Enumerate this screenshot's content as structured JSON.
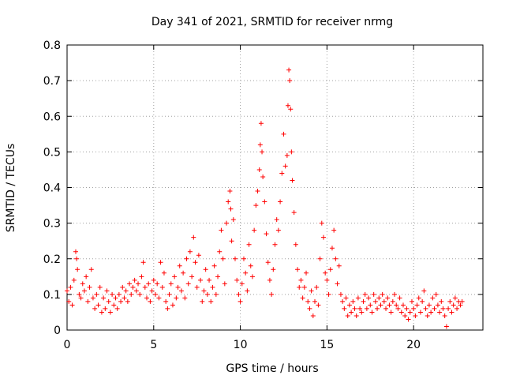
{
  "chart_data": {
    "type": "scatter",
    "title": "Day 341 of 2021, SRMTID for receiver nrmg",
    "xlabel": "GPS time / hours",
    "ylabel": "SRMTID / TECUs",
    "xlim": [
      0,
      24
    ],
    "ylim": [
      0,
      0.8
    ],
    "xticks": [
      0,
      5,
      10,
      15,
      20
    ],
    "yticks": [
      0,
      0.1,
      0.2,
      0.3,
      0.4,
      0.5,
      0.6,
      0.7,
      0.8
    ],
    "xtick_labels": [
      "0",
      "5",
      "10",
      "15",
      "20"
    ],
    "ytick_labels": [
      "0",
      "0.1",
      "0.2",
      "0.3",
      "0.4",
      "0.5",
      "0.6",
      "0.7",
      "0.8"
    ],
    "grid": true,
    "marker": "+",
    "color": "#ff0000",
    "series": [
      {
        "name": "SRMTID",
        "points": [
          [
            0.0,
            0.11
          ],
          [
            0.1,
            0.08
          ],
          [
            0.2,
            0.12
          ],
          [
            0.3,
            0.07
          ],
          [
            0.4,
            0.14
          ],
          [
            0.5,
            0.22
          ],
          [
            0.55,
            0.2
          ],
          [
            0.6,
            0.17
          ],
          [
            0.7,
            0.1
          ],
          [
            0.8,
            0.09
          ],
          [
            0.9,
            0.13
          ],
          [
            1.0,
            0.11
          ],
          [
            1.1,
            0.15
          ],
          [
            1.2,
            0.08
          ],
          [
            1.3,
            0.12
          ],
          [
            1.4,
            0.17
          ],
          [
            1.5,
            0.09
          ],
          [
            1.6,
            0.06
          ],
          [
            1.7,
            0.1
          ],
          [
            1.8,
            0.07
          ],
          [
            1.9,
            0.12
          ],
          [
            2.0,
            0.05
          ],
          [
            2.1,
            0.09
          ],
          [
            2.2,
            0.06
          ],
          [
            2.3,
            0.11
          ],
          [
            2.4,
            0.08
          ],
          [
            2.5,
            0.05
          ],
          [
            2.6,
            0.1
          ],
          [
            2.7,
            0.07
          ],
          [
            2.8,
            0.09
          ],
          [
            2.9,
            0.06
          ],
          [
            3.0,
            0.1
          ],
          [
            3.1,
            0.08
          ],
          [
            3.2,
            0.12
          ],
          [
            3.3,
            0.09
          ],
          [
            3.4,
            0.11
          ],
          [
            3.5,
            0.08
          ],
          [
            3.6,
            0.13
          ],
          [
            3.7,
            0.1
          ],
          [
            3.8,
            0.12
          ],
          [
            3.9,
            0.14
          ],
          [
            4.0,
            0.11
          ],
          [
            4.1,
            0.13
          ],
          [
            4.2,
            0.1
          ],
          [
            4.3,
            0.15
          ],
          [
            4.4,
            0.19
          ],
          [
            4.5,
            0.12
          ],
          [
            4.6,
            0.09
          ],
          [
            4.7,
            0.13
          ],
          [
            4.8,
            0.08
          ],
          [
            4.9,
            0.11
          ],
          [
            5.0,
            0.14
          ],
          [
            5.1,
            0.1
          ],
          [
            5.2,
            0.13
          ],
          [
            5.3,
            0.09
          ],
          [
            5.4,
            0.19
          ],
          [
            5.5,
            0.12
          ],
          [
            5.6,
            0.16
          ],
          [
            5.7,
            0.08
          ],
          [
            5.8,
            0.06
          ],
          [
            5.9,
            0.1
          ],
          [
            6.0,
            0.13
          ],
          [
            6.1,
            0.07
          ],
          [
            6.2,
            0.15
          ],
          [
            6.3,
            0.09
          ],
          [
            6.4,
            0.12
          ],
          [
            6.5,
            0.18
          ],
          [
            6.6,
            0.11
          ],
          [
            6.7,
            0.16
          ],
          [
            6.8,
            0.09
          ],
          [
            6.9,
            0.2
          ],
          [
            7.0,
            0.13
          ],
          [
            7.1,
            0.22
          ],
          [
            7.2,
            0.15
          ],
          [
            7.3,
            0.26
          ],
          [
            7.4,
            0.19
          ],
          [
            7.5,
            0.12
          ],
          [
            7.6,
            0.21
          ],
          [
            7.7,
            0.14
          ],
          [
            7.8,
            0.08
          ],
          [
            7.9,
            0.11
          ],
          [
            8.0,
            0.17
          ],
          [
            8.1,
            0.1
          ],
          [
            8.2,
            0.14
          ],
          [
            8.3,
            0.08
          ],
          [
            8.4,
            0.12
          ],
          [
            8.5,
            0.18
          ],
          [
            8.6,
            0.1
          ],
          [
            8.7,
            0.15
          ],
          [
            8.8,
            0.22
          ],
          [
            8.9,
            0.28
          ],
          [
            9.0,
            0.2
          ],
          [
            9.1,
            0.13
          ],
          [
            9.2,
            0.3
          ],
          [
            9.3,
            0.36
          ],
          [
            9.4,
            0.39
          ],
          [
            9.45,
            0.34
          ],
          [
            9.5,
            0.25
          ],
          [
            9.6,
            0.31
          ],
          [
            9.7,
            0.2
          ],
          [
            9.8,
            0.14
          ],
          [
            9.9,
            0.1
          ],
          [
            10.0,
            0.08
          ],
          [
            10.1,
            0.13
          ],
          [
            10.2,
            0.2
          ],
          [
            10.3,
            0.16
          ],
          [
            10.4,
            0.11
          ],
          [
            10.5,
            0.24
          ],
          [
            10.6,
            0.18
          ],
          [
            10.7,
            0.15
          ],
          [
            10.8,
            0.28
          ],
          [
            10.9,
            0.35
          ],
          [
            11.0,
            0.39
          ],
          [
            11.1,
            0.45
          ],
          [
            11.15,
            0.52
          ],
          [
            11.2,
            0.58
          ],
          [
            11.25,
            0.5
          ],
          [
            11.3,
            0.43
          ],
          [
            11.4,
            0.36
          ],
          [
            11.5,
            0.27
          ],
          [
            11.6,
            0.19
          ],
          [
            11.7,
            0.14
          ],
          [
            11.8,
            0.1
          ],
          [
            11.9,
            0.17
          ],
          [
            12.0,
            0.24
          ],
          [
            12.1,
            0.31
          ],
          [
            12.2,
            0.28
          ],
          [
            12.3,
            0.36
          ],
          [
            12.4,
            0.44
          ],
          [
            12.5,
            0.55
          ],
          [
            12.6,
            0.46
          ],
          [
            12.7,
            0.49
          ],
          [
            12.75,
            0.63
          ],
          [
            12.8,
            0.73
          ],
          [
            12.85,
            0.7
          ],
          [
            12.9,
            0.62
          ],
          [
            12.95,
            0.5
          ],
          [
            13.0,
            0.42
          ],
          [
            13.1,
            0.33
          ],
          [
            13.2,
            0.24
          ],
          [
            13.3,
            0.17
          ],
          [
            13.4,
            0.12
          ],
          [
            13.5,
            0.14
          ],
          [
            13.6,
            0.09
          ],
          [
            13.7,
            0.12
          ],
          [
            13.8,
            0.16
          ],
          [
            13.9,
            0.08
          ],
          [
            14.0,
            0.06
          ],
          [
            14.1,
            0.11
          ],
          [
            14.2,
            0.04
          ],
          [
            14.3,
            0.08
          ],
          [
            14.4,
            0.12
          ],
          [
            14.5,
            0.07
          ],
          [
            14.6,
            0.2
          ],
          [
            14.7,
            0.3
          ],
          [
            14.8,
            0.26
          ],
          [
            14.9,
            0.16
          ],
          [
            15.0,
            0.14
          ],
          [
            15.1,
            0.1
          ],
          [
            15.2,
            0.17
          ],
          [
            15.3,
            0.23
          ],
          [
            15.4,
            0.28
          ],
          [
            15.5,
            0.2
          ],
          [
            15.6,
            0.13
          ],
          [
            15.7,
            0.18
          ],
          [
            15.8,
            0.1
          ],
          [
            15.9,
            0.08
          ],
          [
            16.0,
            0.06
          ],
          [
            16.1,
            0.09
          ],
          [
            16.2,
            0.04
          ],
          [
            16.3,
            0.07
          ],
          [
            16.4,
            0.05
          ],
          [
            16.5,
            0.08
          ],
          [
            16.6,
            0.06
          ],
          [
            16.7,
            0.04
          ],
          [
            16.8,
            0.09
          ],
          [
            16.9,
            0.06
          ],
          [
            17.0,
            0.05
          ],
          [
            17.1,
            0.08
          ],
          [
            17.2,
            0.1
          ],
          [
            17.3,
            0.06
          ],
          [
            17.4,
            0.09
          ],
          [
            17.5,
            0.07
          ],
          [
            17.6,
            0.05
          ],
          [
            17.7,
            0.1
          ],
          [
            17.8,
            0.08
          ],
          [
            17.9,
            0.06
          ],
          [
            18.0,
            0.09
          ],
          [
            18.1,
            0.07
          ],
          [
            18.2,
            0.1
          ],
          [
            18.3,
            0.08
          ],
          [
            18.4,
            0.06
          ],
          [
            18.5,
            0.09
          ],
          [
            18.6,
            0.07
          ],
          [
            18.7,
            0.05
          ],
          [
            18.8,
            0.08
          ],
          [
            18.9,
            0.1
          ],
          [
            19.0,
            0.07
          ],
          [
            19.1,
            0.06
          ],
          [
            19.2,
            0.09
          ],
          [
            19.3,
            0.05
          ],
          [
            19.4,
            0.07
          ],
          [
            19.5,
            0.04
          ],
          [
            19.6,
            0.06
          ],
          [
            19.7,
            0.03
          ],
          [
            19.8,
            0.05
          ],
          [
            19.9,
            0.08
          ],
          [
            20.0,
            0.06
          ],
          [
            20.1,
            0.04
          ],
          [
            20.2,
            0.07
          ],
          [
            20.3,
            0.09
          ],
          [
            20.4,
            0.05
          ],
          [
            20.5,
            0.08
          ],
          [
            20.6,
            0.11
          ],
          [
            20.7,
            0.06
          ],
          [
            20.8,
            0.04
          ],
          [
            20.9,
            0.07
          ],
          [
            21.0,
            0.05
          ],
          [
            21.1,
            0.09
          ],
          [
            21.2,
            0.06
          ],
          [
            21.3,
            0.1
          ],
          [
            21.4,
            0.07
          ],
          [
            21.5,
            0.05
          ],
          [
            21.6,
            0.08
          ],
          [
            21.7,
            0.06
          ],
          [
            21.8,
            0.04
          ],
          [
            21.9,
            0.01
          ],
          [
            22.0,
            0.06
          ],
          [
            22.1,
            0.08
          ],
          [
            22.2,
            0.05
          ],
          [
            22.3,
            0.07
          ],
          [
            22.4,
            0.09
          ],
          [
            22.5,
            0.06
          ],
          [
            22.6,
            0.08
          ],
          [
            22.7,
            0.07
          ],
          [
            22.8,
            0.08
          ]
        ]
      }
    ]
  }
}
